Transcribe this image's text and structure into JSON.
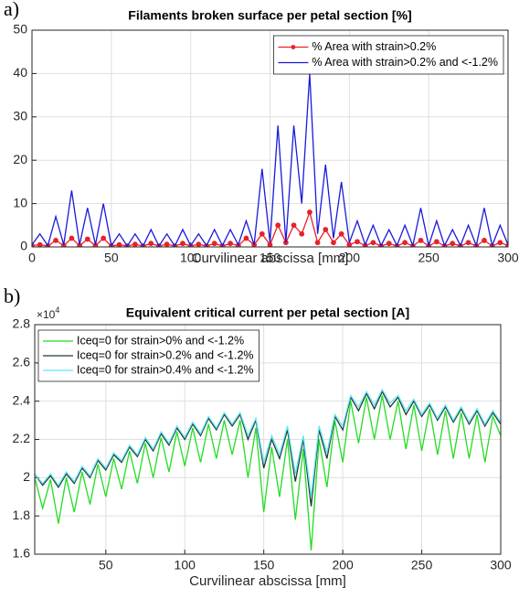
{
  "chart_data": [
    {
      "type": "line",
      "panel_label": "a)",
      "title": "Filaments broken surface per petal section [%]",
      "xlabel": "Curvilinear abscissa [mm]",
      "xlim": [
        0,
        300
      ],
      "xticks": [
        0,
        50,
        100,
        150,
        200,
        250,
        300
      ],
      "ylim": [
        0,
        50
      ],
      "yticks": [
        0,
        10,
        20,
        30,
        40,
        50
      ],
      "grid": true,
      "legend": "upper right",
      "x": [
        0,
        5,
        10,
        15,
        20,
        25,
        30,
        35,
        40,
        45,
        50,
        55,
        60,
        65,
        70,
        75,
        80,
        85,
        90,
        95,
        100,
        105,
        110,
        115,
        120,
        125,
        130,
        135,
        140,
        145,
        150,
        155,
        160,
        165,
        170,
        175,
        180,
        185,
        190,
        195,
        200,
        205,
        210,
        215,
        220,
        225,
        230,
        235,
        240,
        245,
        250,
        255,
        260,
        265,
        270,
        275,
        280,
        285,
        290,
        295,
        300
      ],
      "series": [
        {
          "name": "% Area with strain>0.2%",
          "color": "#e8212a",
          "marker": "o",
          "values": [
            0.3,
            0.5,
            0.2,
            1.5,
            0.3,
            2,
            0.3,
            1.8,
            0.3,
            2,
            0.2,
            0.5,
            0.2,
            0.6,
            0.2,
            0.8,
            0.2,
            0.6,
            0.2,
            0.8,
            0.2,
            0.6,
            0.2,
            0.8,
            0.2,
            0.8,
            0.3,
            2,
            0.5,
            3,
            0.5,
            5,
            1,
            5,
            3,
            8,
            1,
            4,
            1,
            3,
            0.5,
            1.2,
            0.3,
            1,
            0.2,
            0.8,
            0.2,
            1,
            0.2,
            1.5,
            0.2,
            1.2,
            0.2,
            0.8,
            0.2,
            1,
            0.2,
            1.5,
            0.2,
            1,
            0.3
          ]
        },
        {
          "name": "% Area with strain>0.2% and <-1.2%",
          "color": "#1a1adb",
          "values": [
            0.5,
            3,
            0.3,
            7,
            0.5,
            13,
            0.5,
            9,
            0.5,
            10,
            0.3,
            3,
            0.2,
            3,
            0.2,
            4,
            0.2,
            3,
            0.2,
            4,
            0.3,
            3,
            0.3,
            4,
            0.3,
            4,
            0.5,
            6,
            0.5,
            18,
            1,
            28,
            1,
            28,
            10,
            40,
            3,
            19,
            2,
            15,
            1,
            6,
            0.5,
            5,
            0.3,
            4,
            0.3,
            5,
            0.3,
            9,
            0.3,
            6,
            0.3,
            4,
            0.3,
            5,
            0.3,
            9,
            0.3,
            5,
            0.5
          ]
        }
      ]
    },
    {
      "type": "line",
      "panel_label": "b)",
      "title": "Equivalent critical current per petal section [A]",
      "xlabel": "Curvilinear abscissa [mm]",
      "y_multiplier": {
        "base": "×10",
        "exponent": "4"
      },
      "xlim": [
        5,
        300
      ],
      "xticks": [
        50,
        100,
        150,
        200,
        250,
        300
      ],
      "ylim": [
        1.6,
        2.8
      ],
      "yticks": [
        1.6,
        1.8,
        2,
        2.2,
        2.4,
        2.6,
        2.8
      ],
      "grid": true,
      "legend": "upper left",
      "x": [
        5,
        10,
        15,
        20,
        25,
        30,
        35,
        40,
        45,
        50,
        55,
        60,
        65,
        70,
        75,
        80,
        85,
        90,
        95,
        100,
        105,
        110,
        115,
        120,
        125,
        130,
        135,
        140,
        145,
        150,
        155,
        160,
        165,
        170,
        175,
        180,
        185,
        190,
        195,
        200,
        205,
        210,
        215,
        220,
        225,
        230,
        235,
        240,
        245,
        250,
        255,
        260,
        265,
        270,
        275,
        280,
        285,
        290,
        295,
        300
      ],
      "series": [
        {
          "name": "Iceq=0 for strain>0% and <-1.2%",
          "color": "#22dd22",
          "values": [
            2.0,
            1.84,
            1.99,
            1.76,
            2.0,
            1.82,
            2.03,
            1.86,
            2.07,
            1.9,
            2.1,
            1.94,
            2.14,
            1.97,
            2.18,
            2.0,
            2.21,
            2.03,
            2.24,
            2.06,
            2.26,
            2.08,
            2.28,
            2.1,
            2.3,
            2.12,
            2.3,
            2.0,
            2.26,
            1.82,
            2.16,
            1.9,
            2.2,
            1.78,
            2.15,
            1.62,
            2.2,
            1.95,
            2.3,
            2.08,
            2.4,
            2.18,
            2.42,
            2.2,
            2.43,
            2.2,
            2.4,
            2.15,
            2.38,
            2.14,
            2.36,
            2.12,
            2.35,
            2.1,
            2.34,
            2.1,
            2.33,
            2.08,
            2.32,
            2.22
          ]
        },
        {
          "name": "Iceq=0 for strain>0.2% and <-1.2%",
          "color": "#1f3a3a",
          "values": [
            2.02,
            1.96,
            2.01,
            1.95,
            2.02,
            1.97,
            2.05,
            2.0,
            2.09,
            2.04,
            2.12,
            2.08,
            2.16,
            2.11,
            2.2,
            2.14,
            2.23,
            2.17,
            2.26,
            2.2,
            2.28,
            2.22,
            2.31,
            2.25,
            2.33,
            2.27,
            2.33,
            2.2,
            2.3,
            2.05,
            2.2,
            2.1,
            2.25,
            1.98,
            2.2,
            1.85,
            2.25,
            2.1,
            2.32,
            2.25,
            2.42,
            2.35,
            2.44,
            2.36,
            2.45,
            2.37,
            2.42,
            2.33,
            2.4,
            2.32,
            2.38,
            2.3,
            2.37,
            2.29,
            2.36,
            2.28,
            2.35,
            2.27,
            2.34,
            2.28
          ]
        },
        {
          "name": "Iceq=0 for strain>0.4% and <-1.2%",
          "color": "#5ee8f0",
          "values": [
            2.02,
            1.97,
            2.02,
            1.96,
            2.03,
            1.98,
            2.06,
            2.01,
            2.1,
            2.05,
            2.13,
            2.09,
            2.17,
            2.12,
            2.21,
            2.15,
            2.24,
            2.18,
            2.27,
            2.21,
            2.29,
            2.23,
            2.32,
            2.26,
            2.34,
            2.28,
            2.34,
            2.22,
            2.31,
            2.08,
            2.22,
            2.12,
            2.27,
            2.02,
            2.22,
            1.9,
            2.27,
            2.13,
            2.33,
            2.27,
            2.43,
            2.37,
            2.45,
            2.38,
            2.46,
            2.39,
            2.43,
            2.35,
            2.41,
            2.33,
            2.39,
            2.31,
            2.38,
            2.3,
            2.37,
            2.29,
            2.36,
            2.28,
            2.35,
            2.29
          ]
        }
      ]
    }
  ]
}
